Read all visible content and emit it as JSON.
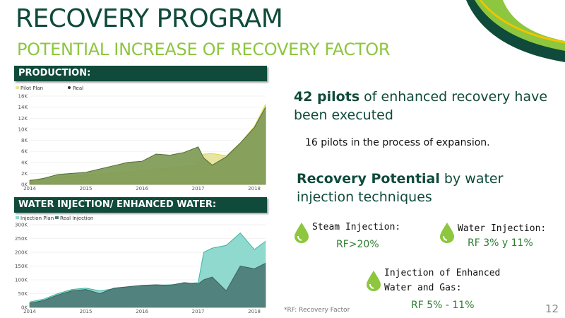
{
  "header": {
    "title": "RECOVERY PROGRAM",
    "subtitle": "POTENTIAL INCREASE OF RECOVERY FACTOR"
  },
  "production": {
    "bar_label": "PRODUCTION:",
    "legend": [
      "Pilot Plan",
      "Real"
    ],
    "y_ticks": [
      "16K",
      "14K",
      "12K",
      "10K",
      "8K",
      "6K",
      "4K",
      "2K",
      "0K"
    ],
    "x_ticks": [
      "2014",
      "2015",
      "2016",
      "2017",
      "2018"
    ]
  },
  "injection": {
    "bar_label": "WATER INJECTION/ ENHANCED WATER:",
    "legend": [
      "Injection Plan",
      "Real Injection"
    ],
    "y_ticks": [
      "300K",
      "250K",
      "200K",
      "150K",
      "100K",
      "50K",
      "0K"
    ],
    "x_ticks": [
      "2014",
      "2015",
      "2016",
      "2017",
      "2018"
    ]
  },
  "chart_data": [
    {
      "type": "area",
      "x": [
        2014.0,
        2014.25,
        2014.5,
        2014.75,
        2015.0,
        2015.25,
        2015.5,
        2015.75,
        2016.0,
        2016.25,
        2016.5,
        2016.75,
        2017.0,
        2017.1,
        2017.25,
        2017.5,
        2017.75,
        2018.0,
        2018.2
      ],
      "series": [
        {
          "name": "Pilot Plan",
          "values": [
            800,
            900,
            1200,
            1500,
            1600,
            1800,
            2000,
            2300,
            2500,
            2800,
            3000,
            3200,
            3600,
            5500,
            5600,
            5200,
            7500,
            10500,
            14500
          ]
        },
        {
          "name": "Real",
          "values": [
            700,
            1100,
            1800,
            2000,
            2200,
            2800,
            3400,
            4000,
            4200,
            5500,
            5300,
            5800,
            6800,
            4800,
            3500,
            5000,
            7500,
            10300,
            14000
          ]
        }
      ],
      "xlim": [
        2014,
        2018.2
      ],
      "ylim": [
        0,
        16000
      ]
    },
    {
      "type": "area",
      "x": [
        2014.0,
        2014.25,
        2014.5,
        2014.75,
        2015.0,
        2015.25,
        2015.5,
        2015.75,
        2016.0,
        2016.25,
        2016.5,
        2016.75,
        2017.0,
        2017.1,
        2017.25,
        2017.5,
        2017.75,
        2018.0,
        2018.2
      ],
      "series": [
        {
          "name": "Injection Plan",
          "values": [
            20000,
            30000,
            50000,
            65000,
            70000,
            60000,
            68000,
            72000,
            75000,
            80000,
            82000,
            85000,
            90000,
            200000,
            215000,
            225000,
            270000,
            210000,
            240000
          ]
        },
        {
          "name": "Real Injection",
          "values": [
            15000,
            25000,
            45000,
            60000,
            65000,
            50000,
            70000,
            75000,
            80000,
            82000,
            80000,
            90000,
            85000,
            100000,
            110000,
            60000,
            150000,
            140000,
            160000
          ]
        }
      ],
      "xlim": [
        2014,
        2018.2
      ],
      "ylim": [
        0,
        300000
      ]
    }
  ],
  "right": {
    "pilots_strong": "42 pilots",
    "pilots_rest": " of enhanced recovery have been executed",
    "expansion": "16 pilots in the process of expansion.",
    "potential_strong": "Recovery Potential",
    "potential_rest": " by water injection techniques",
    "steam_label": "Steam Injection:",
    "steam_rf": "RF>20%",
    "water_label": "Water Injection:",
    "water_rf": "RF 3% y 11%",
    "enh_label_1": "Injection of Enhanced",
    "enh_label_2": "Water and Gas:",
    "enh_rf": "RF 5% - 11%"
  },
  "footer": {
    "note": "*RF: Recovery Factor",
    "page": "12"
  },
  "colors": {
    "dark_green": "#0f4a3a",
    "lime": "#8dc63f",
    "pilot_fill": "#e8e5a0",
    "real_fill": "#7e9a55",
    "inj_plan_fill": "#8fd9cf",
    "inj_real_fill": "#4d7b76"
  }
}
